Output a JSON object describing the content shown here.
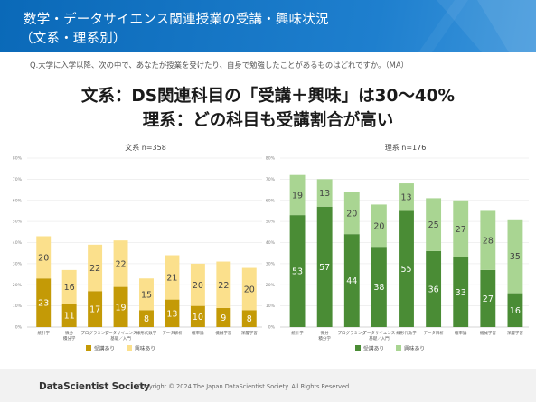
{
  "header": {
    "title_line1": "数学・データサイエンス関連授業の受講・興味状況",
    "title_line2": "（文系・理系別）"
  },
  "question": "Q.大学に入学以降、次の中で、あなたが授業を受けたり、自身で勉強したことがあるものはどれですか。（MA）",
  "headline": {
    "line1": "文系：DS関連科目の「受講＋興味」は30～40%",
    "line2": "理系：どの科目も受講割合が高い"
  },
  "footer": {
    "logo": "DataScientist Society",
    "copyright": "Copyright © 2024  The Japan DataScientist Society. All Rights Reserved."
  },
  "colors": {
    "header_blue": "#0a69b8",
    "bunkei_taken": "#c49a06",
    "bunkei_interest": "#fbe08c",
    "rikei_taken": "#4a8c35",
    "rikei_interest": "#a9d592"
  },
  "chart_data": [
    {
      "type": "bar",
      "stacked": true,
      "title": "文系 n=358",
      "categories": [
        "統計学",
        "微分\n積分学",
        "プログラミング",
        "データサイエンス\n基礎／入門",
        "線形代数学",
        "データ解析",
        "確率論",
        "機械学習",
        "深層学習"
      ],
      "series": [
        {
          "name": "受講あり",
          "values": [
            23,
            11,
            17,
            19,
            8,
            13,
            10,
            9,
            8
          ]
        },
        {
          "name": "興味あり",
          "values": [
            20,
            16,
            22,
            22,
            15,
            21,
            20,
            22,
            20
          ]
        }
      ],
      "y_ticks": [
        "0%",
        "10%",
        "20%",
        "30%",
        "40%",
        "50%",
        "60%",
        "70%",
        "80%"
      ],
      "ylim": [
        0,
        80
      ],
      "legend_position": "bottom"
    },
    {
      "type": "bar",
      "stacked": true,
      "title": "理系 n=176",
      "categories": [
        "統計学",
        "微分\n積分学",
        "プログラミング",
        "データサイエンス\n基礎／入門",
        "線形代数学",
        "データ解析",
        "確率論",
        "機械学習",
        "深層学習"
      ],
      "series": [
        {
          "name": "受講あり",
          "values": [
            53,
            57,
            44,
            38,
            55,
            36,
            33,
            27,
            16
          ]
        },
        {
          "name": "興味あり",
          "values": [
            19,
            13,
            20,
            20,
            13,
            25,
            27,
            28,
            35
          ]
        }
      ],
      "y_ticks": [
        "0%",
        "10%",
        "20%",
        "30%",
        "40%",
        "50%",
        "60%",
        "70%",
        "80%"
      ],
      "ylim": [
        0,
        80
      ],
      "legend_position": "bottom"
    }
  ]
}
